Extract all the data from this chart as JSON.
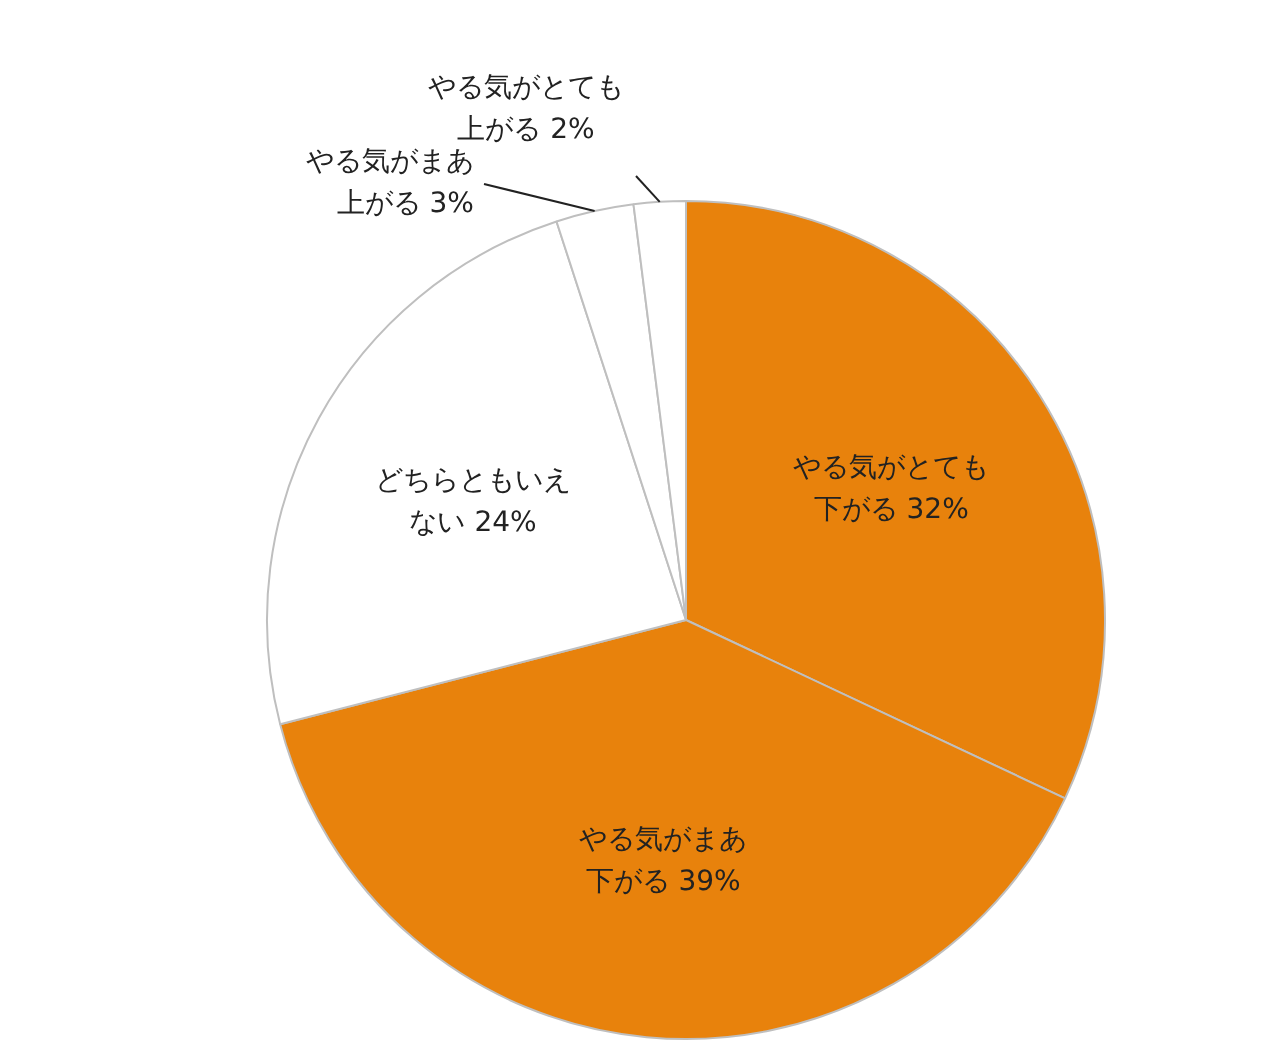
{
  "chart_data": {
    "type": "pie",
    "categories": [
      "やる気がとても下がる",
      "やる気がまあ下がる",
      "どちらともいえない",
      "やる気がまあ上がる",
      "やる気がとても上がる"
    ],
    "values": [
      32,
      39,
      24,
      3,
      2
    ],
    "value_labels": [
      "32%",
      "39%",
      "24%",
      "3%",
      "2%"
    ],
    "colors": [
      "#e8820c",
      "#e8820c",
      "#ffffff",
      "#ffffff",
      "#ffffff"
    ],
    "legend": false
  }
}
